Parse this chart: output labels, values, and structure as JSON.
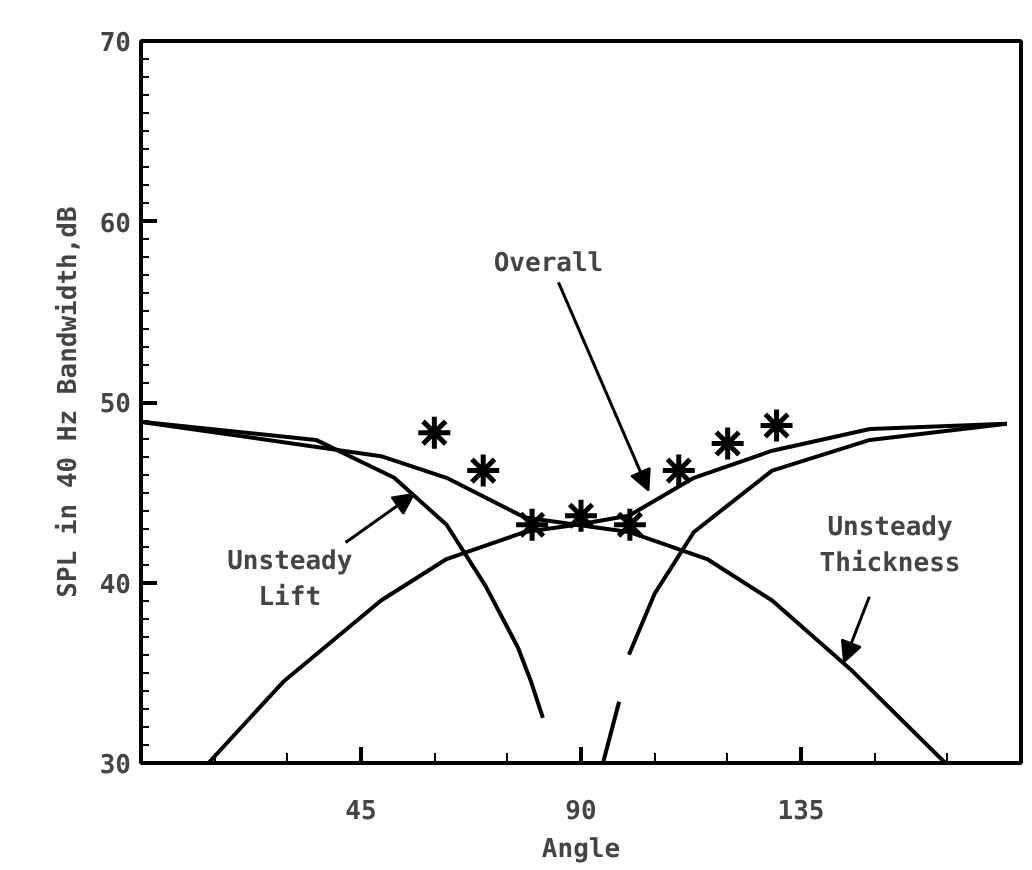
{
  "chart_data": {
    "type": "line",
    "xlabel": "Angle",
    "ylabel": "SPL in 40 Hz Bandwidth,dB",
    "xlim": [
      0,
      180
    ],
    "ylim": [
      30,
      70
    ],
    "xticks": [
      45,
      90,
      135
    ],
    "yticks": [
      30,
      40,
      50,
      60,
      70
    ],
    "grid": false,
    "series": [
      {
        "color": "#000000",
        "x": [
          0,
          35.8,
          51.8,
          62.5,
          70.5,
          77.1,
          79.8,
          82.2
        ],
        "values": [
          48.9,
          47.9,
          45.8,
          43.2,
          39.8,
          36.4,
          34.5,
          32.5
        ]
      },
      {
        "color": "#000000",
        "x": [
          94.5,
          97.8,
          98.8,
          99.8,
          105.1,
          113.1,
          129.1,
          149.1,
          177.1
        ],
        "values": [
          30,
          33.4,
          null,
          36.0,
          39.4,
          42.8,
          46.2,
          47.9,
          48.8
        ]
      },
      {
        "color": "#000000",
        "x": [
          13.8,
          29.1,
          49.1,
          62.5,
          78.5,
          89.1,
          99.8,
          115.8,
          129.1,
          145.1,
          164.5
        ],
        "values": [
          30,
          34.5,
          39.0,
          41.3,
          42.8,
          43.2,
          42.8,
          41.3,
          39.0,
          35.2,
          30
        ]
      },
      {
        "color": "#000000",
        "x": [
          0,
          49.1,
          62.5,
          78.5,
          89.1,
          99.8,
          113.1,
          129.1,
          149.1,
          177.1
        ],
        "values": [
          48.9,
          47.0,
          45.8,
          43.6,
          43.2,
          43.7,
          45.8,
          47.3,
          48.5,
          48.8
        ]
      },
      {
        "type": "scatter",
        "color": "#000000",
        "marker": "cross",
        "x": [
          60,
          70,
          80,
          90,
          100,
          110,
          120,
          130
        ],
        "values": [
          48.3,
          46.2,
          43.2,
          43.7,
          43.2,
          46.2,
          47.7,
          48.7
        ]
      }
    ],
    "annotations": [
      {
        "text": "Overall",
        "x": 103.8,
        "y": 45.1
      },
      {
        "text": "Unsteady\nLift",
        "x": 55.8,
        "y": 44.9
      },
      {
        "text": "Unsteady\nThickness",
        "x": 143.8,
        "y": 35.6
      }
    ]
  }
}
